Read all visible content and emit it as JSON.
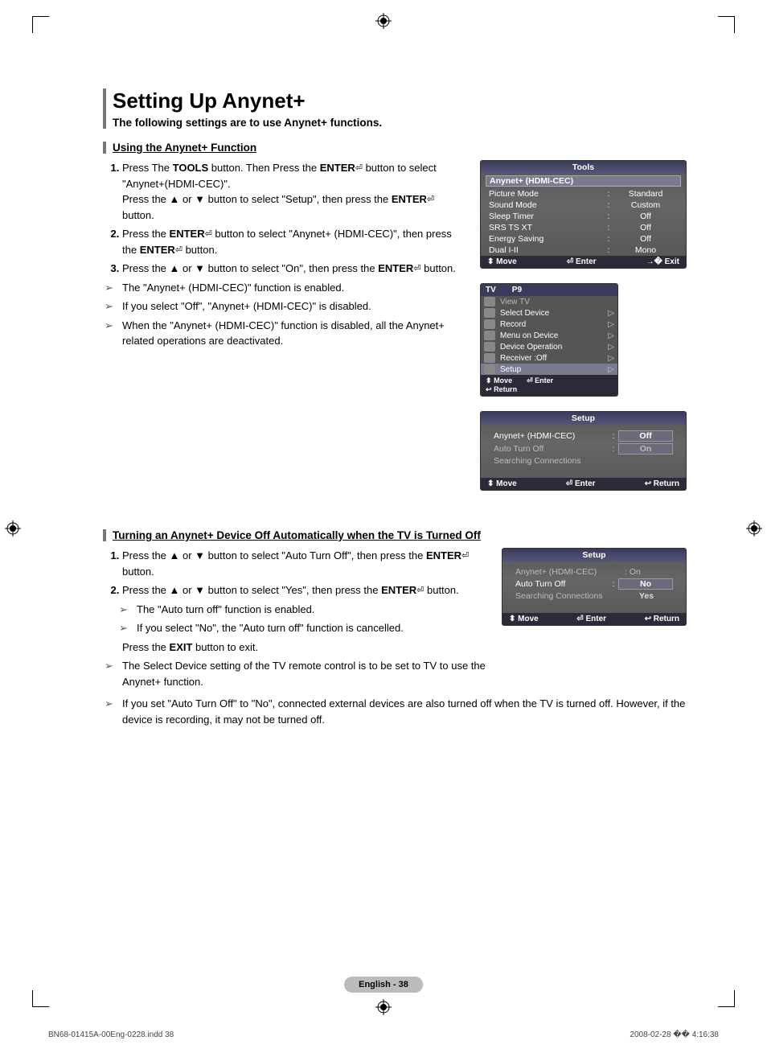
{
  "page": {
    "title": "Setting Up Anynet+",
    "intro": "The following settings are to use Anynet+ functions.",
    "section1": "Using the Anynet+ Function",
    "section2": "Turning an Anynet+ Device Off Automatically when the TV is Turned Off",
    "badge": "English - 38"
  },
  "steps1": {
    "s1a": "Press The ",
    "s1b": "TOOLS",
    "s1c": " button. Then Press the ",
    "s1d": "ENTER",
    "s1e": " button to select \"Anynet+(HDMI-CEC)\".",
    "s1f": "Press the ▲ or ▼ button to select \"Setup\", then press the ",
    "s1g": "ENTER",
    "s1h": " button.",
    "s2a": "Press the ",
    "s2b": "ENTER",
    "s2c": " button to select \"Anynet+ (HDMI-CEC)\", then press the ",
    "s2d": "ENTER",
    "s2e": " button.",
    "s3a": "Press the ▲ or ▼ button to select \"On\", then press the ",
    "s3b": "ENTER",
    "s3c": " button."
  },
  "notes1": {
    "n1": "The \"Anynet+ (HDMI-CEC)\" function is enabled.",
    "n2": "If you select \"Off\", \"Anynet+ (HDMI-CEC)\" is disabled.",
    "n3": "When the \"Anynet+ (HDMI-CEC)\" function is disabled, all the Anynet+ related operations are deactivated."
  },
  "steps2": {
    "s1a": "Press the ▲ or ▼ button to select \"Auto Turn Off\", then press the ",
    "s1b": "ENTER",
    "s1c": " button.",
    "s2a": "Press the ▲ or ▼ button to select \"Yes\", then press the ",
    "s2b": "ENTER",
    "s2c": " button.",
    "sub1": "The \"Auto turn off\" function is enabled.",
    "sub2": "If you select \"No\", the \"Auto turn off\" function is cancelled.",
    "exit_a": "Press the ",
    "exit_b": "EXIT",
    "exit_c": " button to exit."
  },
  "notes2": {
    "n1": "The Select Device setting of the TV remote control is to be set to TV to use the Anynet+ function.",
    "n2": "If you set \"Auto Turn Off\" to \"No\", connected external devices are also turned off when the TV is turned off. However, if the device is recording, it may not be turned off."
  },
  "osd_tools": {
    "title": "Tools",
    "highlight": "Anynet+ (HDMI-CEC)",
    "rows": [
      {
        "label": "Picture Mode",
        "val": "Standard"
      },
      {
        "label": "Sound Mode",
        "val": "Custom"
      },
      {
        "label": "Sleep Timer",
        "val": "Off"
      },
      {
        "label": "SRS TS XT",
        "val": "Off"
      },
      {
        "label": "Energy Saving",
        "val": "Off"
      },
      {
        "label": "Dual I-II",
        "val": "Mono"
      }
    ],
    "footer": {
      "move": "Move",
      "enter": "Enter",
      "exit": "Exit"
    }
  },
  "osd_anynet": {
    "hdr_tv": "TV",
    "hdr_p": "P9",
    "items": [
      {
        "label": "View TV",
        "low": true
      },
      {
        "label": "Select Device",
        "arr": true
      },
      {
        "label": "Record",
        "arr": true
      },
      {
        "label": "Menu on Device",
        "arr": true
      },
      {
        "label": "Device Operation",
        "arr": true
      },
      {
        "label": "Receiver     :Off",
        "arr": true
      },
      {
        "label": "Setup",
        "arr": true,
        "hl": true
      }
    ],
    "ftr_move": "Move",
    "ftr_enter": "Enter",
    "ftr_return": "Return"
  },
  "osd_setup1": {
    "title": "Setup",
    "r1_label": "Anynet+ (HDMI-CEC)",
    "r1_val": "Off",
    "r2_label": "Auto Turn Off",
    "r2_val": "On",
    "r3_label": "Searching Connections",
    "ftr_move": "Move",
    "ftr_enter": "Enter",
    "ftr_return": "Return"
  },
  "osd_setup2": {
    "title": "Setup",
    "r1_label": "Anynet+ (HDMI-CEC)",
    "r1_val": ": On",
    "r2_label": "Auto Turn Off",
    "r2_val_no": "No",
    "r2_val_yes": "Yes",
    "r3_label": "Searching Connections",
    "ftr_move": "Move",
    "ftr_enter": "Enter",
    "ftr_return": "Return"
  },
  "footer": {
    "left": "BN68-01415A-00Eng-0228.indd   38",
    "right": "2008-02-28   �� 4:16:38"
  },
  "symbols": {
    "updown": "⬍",
    "enter": "⏎",
    "exit": "→�",
    "return": "↩"
  },
  "colors": {
    "osd_bg": "#555560",
    "osd_header": "#3a3a5a",
    "osd_footer": "#2a2a38",
    "accent": "#777777",
    "badge_bg": "#bbbbbb"
  }
}
